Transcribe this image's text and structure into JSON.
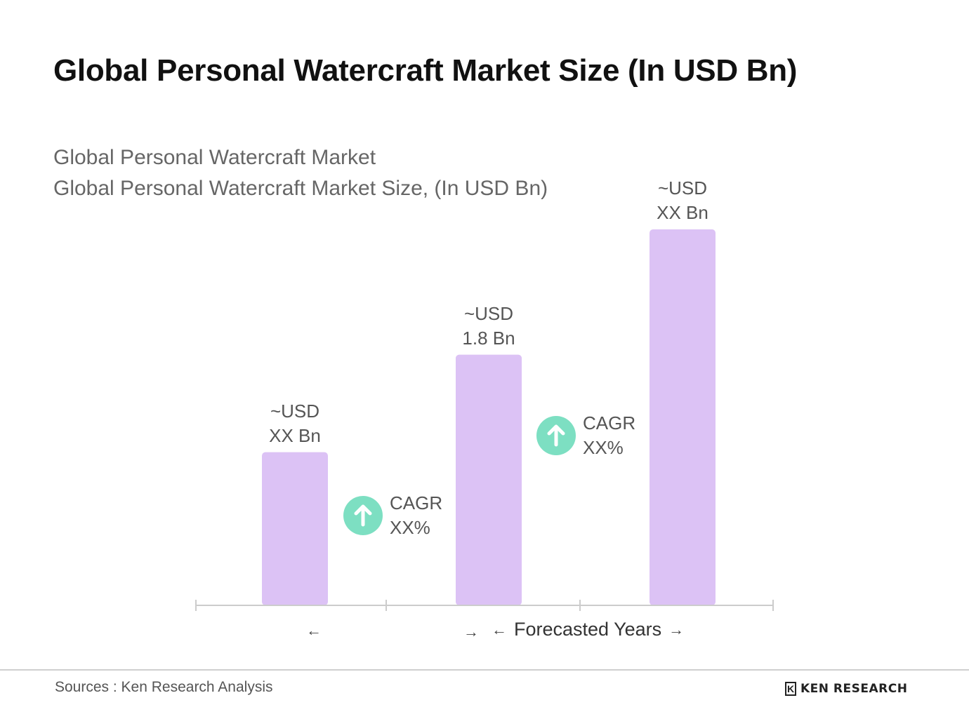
{
  "header": {
    "title": "Global Personal Watercraft Market Size (In USD Bn)"
  },
  "chart_data": {
    "type": "bar",
    "title": "Global Personal Watercraft Market",
    "subtitle": "Global Personal Watercraft Market Size, (In USD Bn)",
    "categories": [
      "",
      "",
      ""
    ],
    "values": [
      1.1,
      1.8,
      2.7
    ],
    "value_labels": [
      {
        "line1": "~USD",
        "line2": "XX Bn"
      },
      {
        "line1": "~USD",
        "line2": "1.8 Bn"
      },
      {
        "line1": "~USD",
        "line2": "XX Bn"
      }
    ],
    "ylim": [
      0,
      2.7
    ],
    "grid": false,
    "cagr": [
      {
        "line1": "CAGR",
        "line2": "XX%"
      },
      {
        "line1": "CAGR",
        "line2": "XX%"
      }
    ],
    "x_annotations": {
      "historic_arrow": "←",
      "forecast_left_arrow": "→",
      "forecast_start": "←",
      "forecast_label": "Forecasted Years",
      "forecast_end": "→"
    },
    "bar_color": "#dcc2f5",
    "cagr_color": "#7ddfc2"
  },
  "footer": {
    "sources": "Sources : Ken Research Analysis",
    "logo_mark": "K",
    "logo_text": "KEN RESEARCH"
  }
}
